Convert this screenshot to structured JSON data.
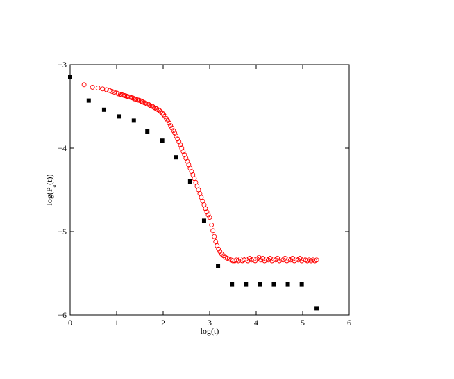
{
  "chart_data": {
    "type": "scatter",
    "title": "",
    "xlabel": "log(t)",
    "ylabel_main": "log(P",
    "ylabel_sub": "a",
    "ylabel_tail": "(t))",
    "xlim": [
      0,
      6
    ],
    "ylim": [
      -6,
      -3
    ],
    "x_ticks": [
      0,
      1,
      2,
      3,
      4,
      5,
      6
    ],
    "y_ticks": [
      -6,
      -5,
      -4,
      -3
    ],
    "x_tick_labels": [
      "0",
      "1",
      "2",
      "3",
      "4",
      "5",
      "6"
    ],
    "y_tick_labels": [
      "−6",
      "−5",
      "−4",
      "−3"
    ],
    "grid": false,
    "series": [
      {
        "marker": "open-circle",
        "color": "#ff0000",
        "points": [
          [
            0.3,
            -3.24
          ],
          [
            0.48,
            -3.27
          ],
          [
            0.6,
            -3.28
          ],
          [
            0.7,
            -3.29
          ],
          [
            0.78,
            -3.3
          ],
          [
            0.85,
            -3.31
          ],
          [
            0.9,
            -3.32
          ],
          [
            0.95,
            -3.33
          ],
          [
            1.0,
            -3.34
          ],
          [
            1.04,
            -3.35
          ],
          [
            1.08,
            -3.355
          ],
          [
            1.11,
            -3.36
          ],
          [
            1.14,
            -3.365
          ],
          [
            1.17,
            -3.37
          ],
          [
            1.2,
            -3.375
          ],
          [
            1.23,
            -3.38
          ],
          [
            1.26,
            -3.385
          ],
          [
            1.29,
            -3.39
          ],
          [
            1.32,
            -3.395
          ],
          [
            1.35,
            -3.4
          ],
          [
            1.38,
            -3.41
          ],
          [
            1.41,
            -3.415
          ],
          [
            1.44,
            -3.42
          ],
          [
            1.47,
            -3.425
          ],
          [
            1.5,
            -3.43
          ],
          [
            1.53,
            -3.44
          ],
          [
            1.56,
            -3.445
          ],
          [
            1.59,
            -3.455
          ],
          [
            1.62,
            -3.46
          ],
          [
            1.65,
            -3.47
          ],
          [
            1.68,
            -3.475
          ],
          [
            1.71,
            -3.485
          ],
          [
            1.74,
            -3.495
          ],
          [
            1.77,
            -3.5
          ],
          [
            1.8,
            -3.51
          ],
          [
            1.83,
            -3.52
          ],
          [
            1.86,
            -3.53
          ],
          [
            1.89,
            -3.54
          ],
          [
            1.92,
            -3.55
          ],
          [
            1.95,
            -3.565
          ],
          [
            1.98,
            -3.58
          ],
          [
            2.01,
            -3.6
          ],
          [
            2.04,
            -3.62
          ],
          [
            2.07,
            -3.645
          ],
          [
            2.1,
            -3.67
          ],
          [
            2.13,
            -3.7
          ],
          [
            2.16,
            -3.73
          ],
          [
            2.19,
            -3.76
          ],
          [
            2.22,
            -3.79
          ],
          [
            2.25,
            -3.82
          ],
          [
            2.28,
            -3.855
          ],
          [
            2.31,
            -3.89
          ],
          [
            2.34,
            -3.925
          ],
          [
            2.37,
            -3.96
          ],
          [
            2.4,
            -4.0
          ],
          [
            2.43,
            -4.04
          ],
          [
            2.46,
            -4.08
          ],
          [
            2.49,
            -4.12
          ],
          [
            2.52,
            -4.16
          ],
          [
            2.55,
            -4.2
          ],
          [
            2.58,
            -4.24
          ],
          [
            2.61,
            -4.28
          ],
          [
            2.64,
            -4.32
          ],
          [
            2.67,
            -4.365
          ],
          [
            2.7,
            -4.41
          ],
          [
            2.73,
            -4.455
          ],
          [
            2.76,
            -4.5
          ],
          [
            2.79,
            -4.545
          ],
          [
            2.82,
            -4.59
          ],
          [
            2.85,
            -4.635
          ],
          [
            2.88,
            -4.68
          ],
          [
            2.91,
            -4.725
          ],
          [
            2.94,
            -4.765
          ],
          [
            2.97,
            -4.8
          ],
          [
            3.0,
            -4.83
          ],
          [
            3.04,
            -4.92
          ],
          [
            3.07,
            -4.99
          ],
          [
            3.1,
            -5.06
          ],
          [
            3.13,
            -5.12
          ],
          [
            3.16,
            -5.17
          ],
          [
            3.19,
            -5.21
          ],
          [
            3.22,
            -5.24
          ],
          [
            3.26,
            -5.27
          ],
          [
            3.3,
            -5.29
          ],
          [
            3.34,
            -5.31
          ],
          [
            3.38,
            -5.32
          ],
          [
            3.42,
            -5.33
          ],
          [
            3.46,
            -5.34
          ],
          [
            3.5,
            -5.35
          ],
          [
            3.54,
            -5.35
          ],
          [
            3.58,
            -5.34
          ],
          [
            3.62,
            -5.35
          ],
          [
            3.66,
            -5.33
          ],
          [
            3.7,
            -5.35
          ],
          [
            3.74,
            -5.34
          ],
          [
            3.78,
            -5.33
          ],
          [
            3.82,
            -5.35
          ],
          [
            3.86,
            -5.32
          ],
          [
            3.9,
            -5.34
          ],
          [
            3.94,
            -5.33
          ],
          [
            3.98,
            -5.35
          ],
          [
            4.02,
            -5.33
          ],
          [
            4.06,
            -5.31
          ],
          [
            4.1,
            -5.34
          ],
          [
            4.14,
            -5.32
          ],
          [
            4.18,
            -5.35
          ],
          [
            4.22,
            -5.33
          ],
          [
            4.26,
            -5.34
          ],
          [
            4.3,
            -5.32
          ],
          [
            4.34,
            -5.35
          ],
          [
            4.38,
            -5.33
          ],
          [
            4.42,
            -5.34
          ],
          [
            4.46,
            -5.32
          ],
          [
            4.5,
            -5.35
          ],
          [
            4.54,
            -5.33
          ],
          [
            4.58,
            -5.34
          ],
          [
            4.62,
            -5.32
          ],
          [
            4.66,
            -5.35
          ],
          [
            4.7,
            -5.33
          ],
          [
            4.74,
            -5.34
          ],
          [
            4.78,
            -5.32
          ],
          [
            4.82,
            -5.35
          ],
          [
            4.86,
            -5.33
          ],
          [
            4.9,
            -5.34
          ],
          [
            4.94,
            -5.32
          ],
          [
            4.98,
            -5.35
          ],
          [
            5.02,
            -5.33
          ],
          [
            5.06,
            -5.34
          ],
          [
            5.1,
            -5.35
          ],
          [
            5.14,
            -5.34
          ],
          [
            5.18,
            -5.35
          ],
          [
            5.22,
            -5.34
          ],
          [
            5.26,
            -5.35
          ],
          [
            5.3,
            -5.34
          ]
        ]
      },
      {
        "marker": "filled-square",
        "color": "#000000",
        "points": [
          [
            0.0,
            -3.15
          ],
          [
            0.4,
            -3.43
          ],
          [
            0.73,
            -3.54
          ],
          [
            1.06,
            -3.62
          ],
          [
            1.37,
            -3.67
          ],
          [
            1.66,
            -3.8
          ],
          [
            1.98,
            -3.91
          ],
          [
            2.28,
            -4.11
          ],
          [
            2.58,
            -4.4
          ],
          [
            2.88,
            -4.87
          ],
          [
            3.18,
            -5.41
          ],
          [
            3.48,
            -5.63
          ],
          [
            3.78,
            -5.63
          ],
          [
            4.08,
            -5.63
          ],
          [
            4.38,
            -5.63
          ],
          [
            4.68,
            -5.63
          ],
          [
            4.98,
            -5.63
          ],
          [
            5.3,
            -5.92
          ]
        ]
      }
    ]
  }
}
